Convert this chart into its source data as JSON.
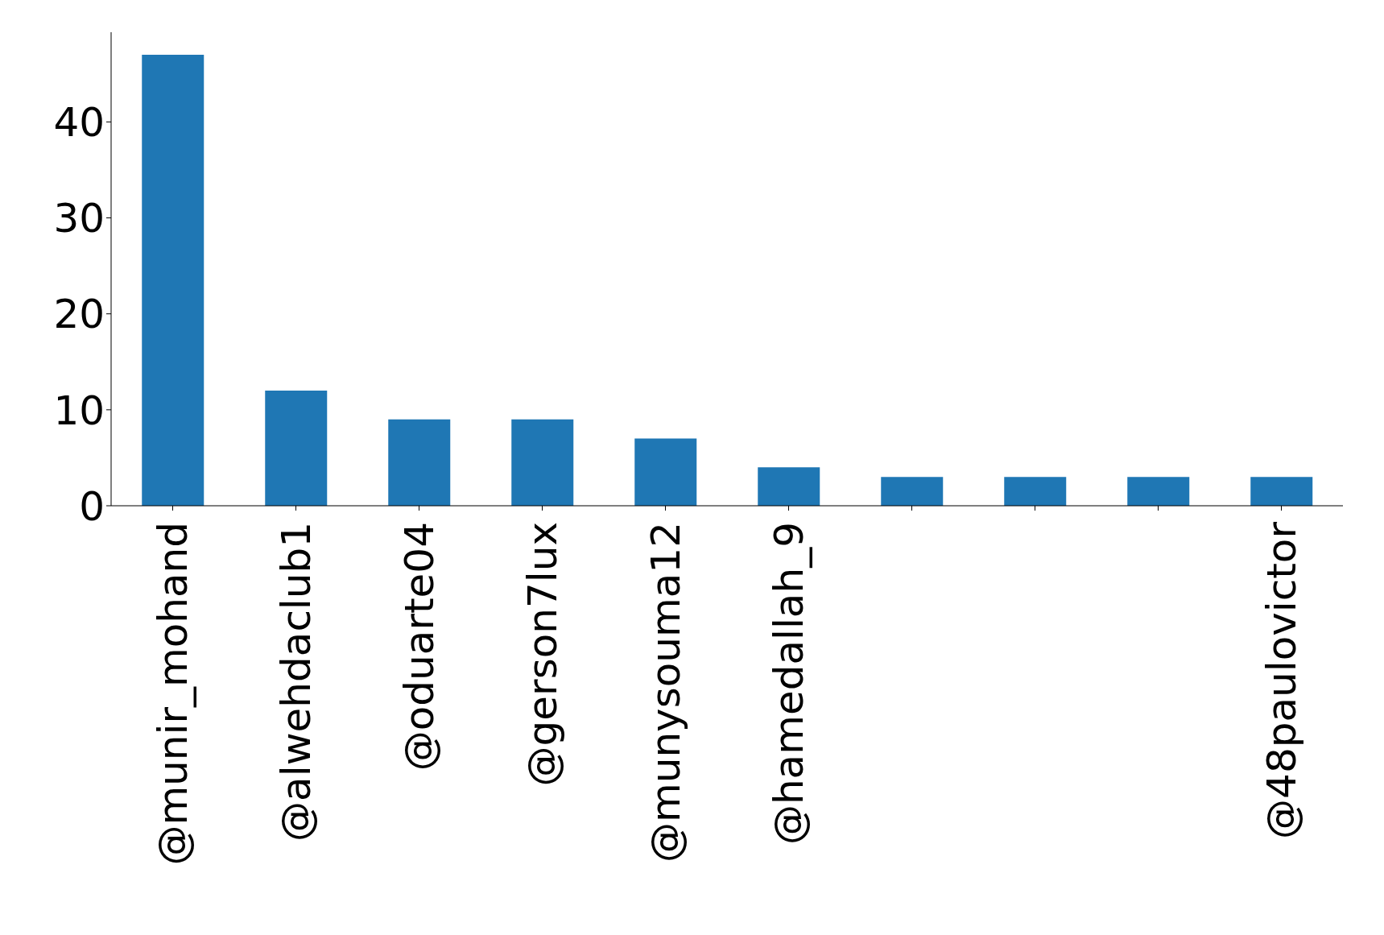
{
  "chart_data": {
    "type": "bar",
    "categories": [
      "@munir_mohand",
      "@alwehdaclub1",
      "@oduarte04",
      "@gerson7lux",
      "@munysouma12",
      "@hamedallah_9",
      null,
      null,
      null,
      "@48paulovictor"
    ],
    "values": [
      47,
      12,
      9,
      9,
      7,
      4,
      3,
      3,
      3,
      3
    ],
    "color": "#1f77b4",
    "ylim": [
      0,
      49.35
    ],
    "yticks": [
      0,
      10,
      20,
      30,
      40
    ],
    "grid": false,
    "legend": false
  }
}
